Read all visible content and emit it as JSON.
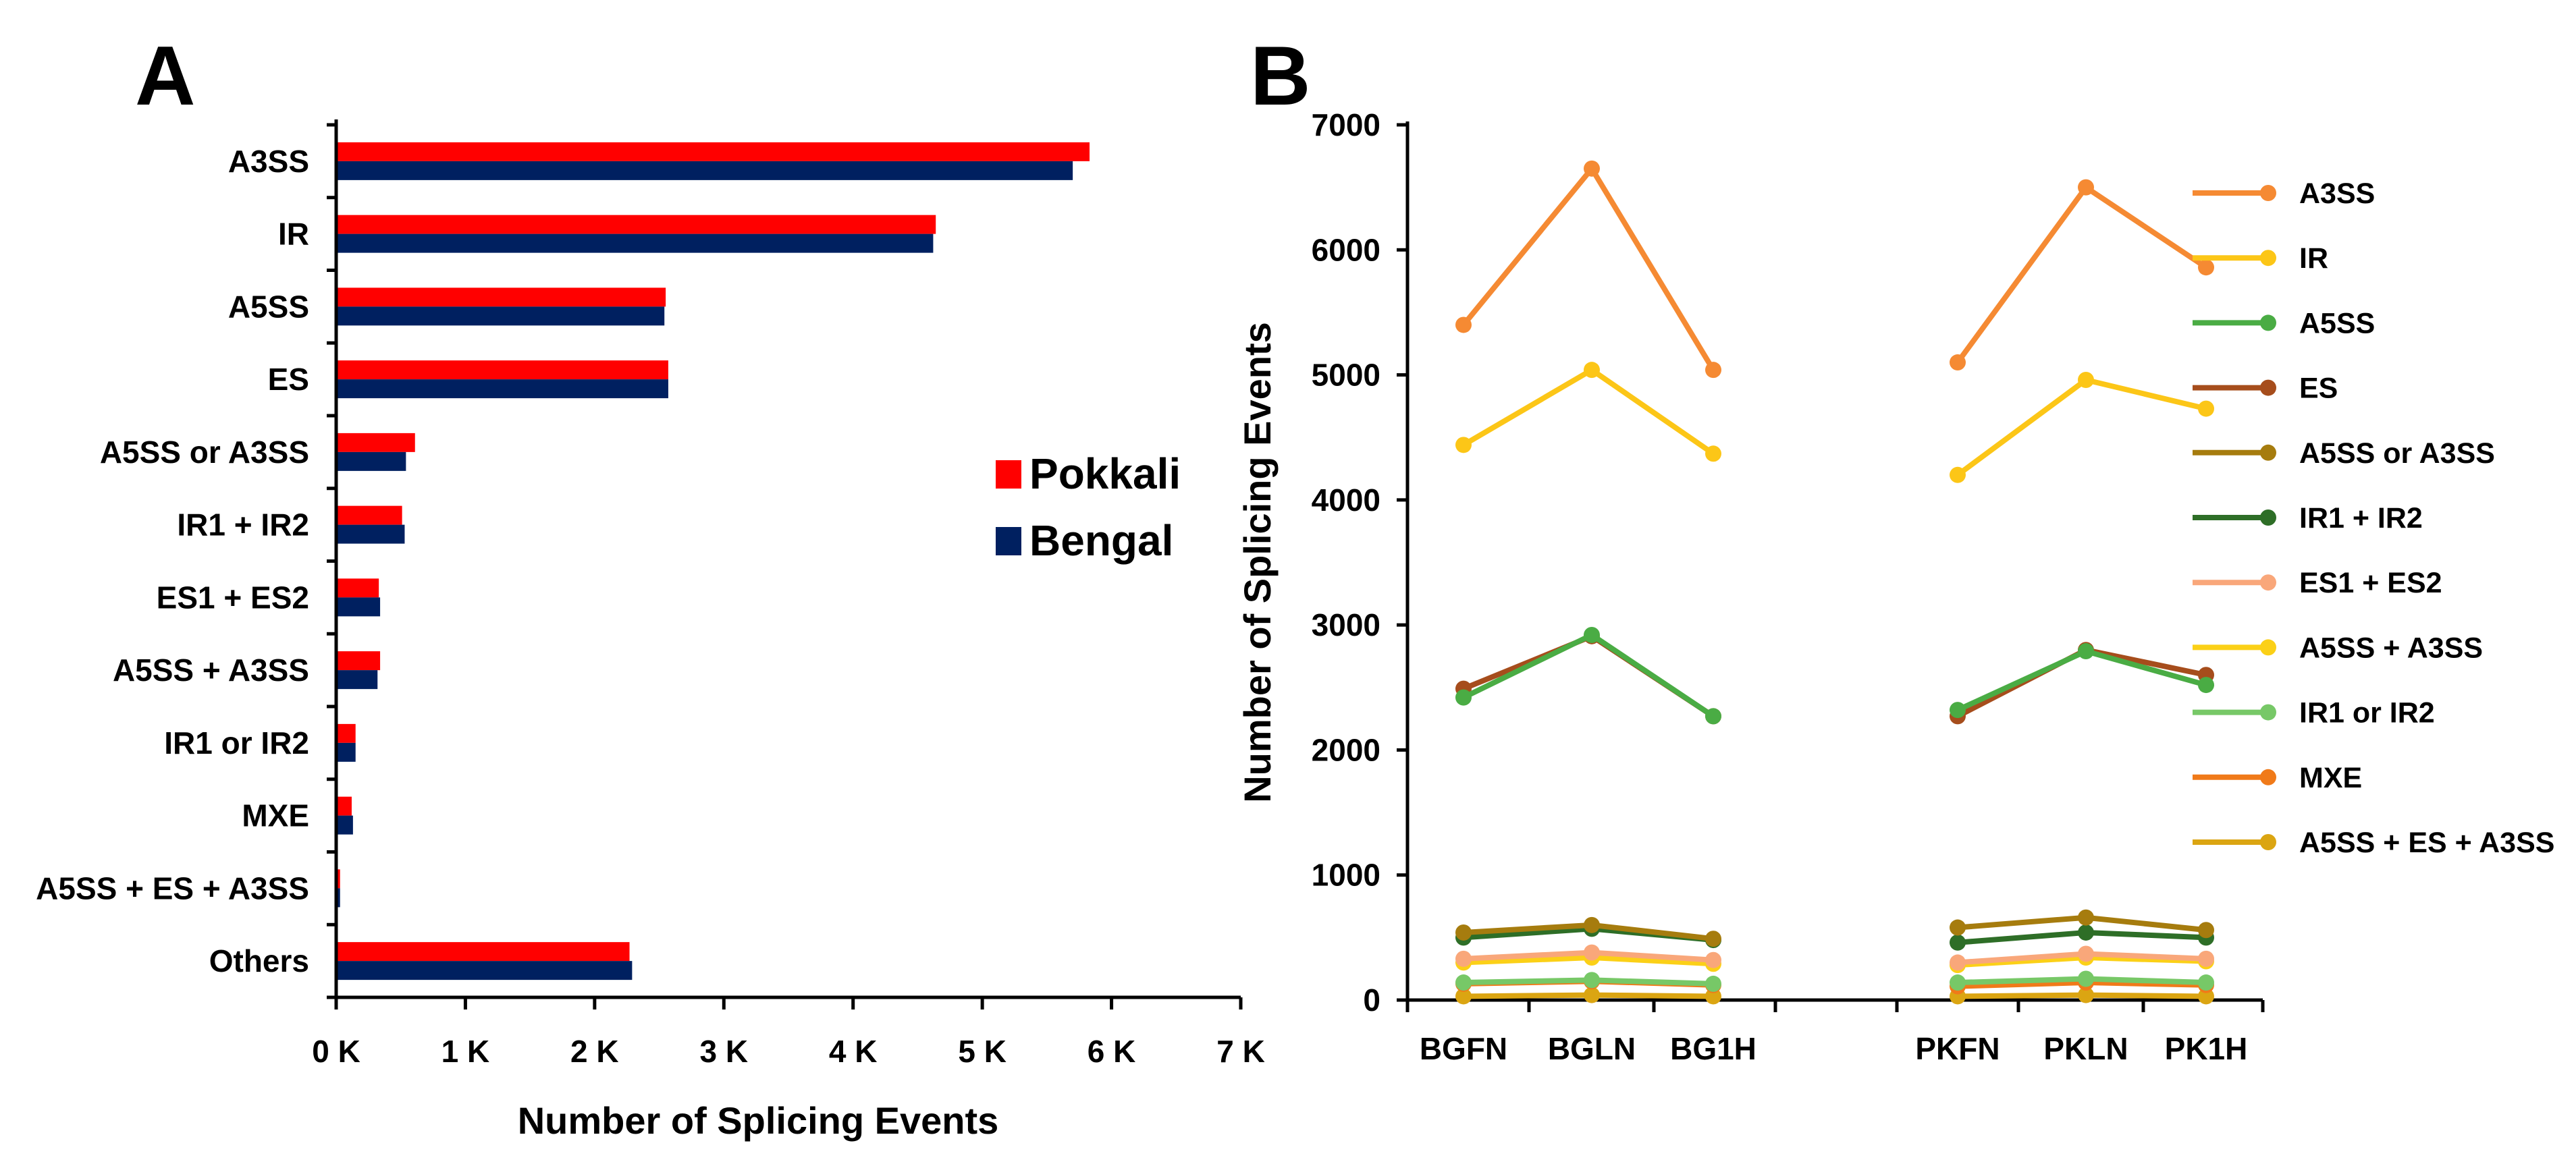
{
  "chart_data": [
    {
      "panel_label": "A",
      "type": "bar",
      "orientation": "horizontal",
      "categories": [
        "A3SS",
        "IR",
        "A5SS",
        "ES",
        "A5SS or A3SS",
        "IR1 + IR2",
        "ES1 + ES2",
        "A5SS + A3SS",
        "IR1 or IR2",
        "MXE",
        "A5SS + ES + A3SS",
        "Others"
      ],
      "series": [
        {
          "name": "Pokkali",
          "color": "#ff0000",
          "values": [
            5830,
            4640,
            2550,
            2570,
            610,
            510,
            330,
            340,
            150,
            120,
            30,
            2270
          ]
        },
        {
          "name": "Bengal",
          "color": "#002060",
          "values": [
            5700,
            4620,
            2540,
            2570,
            540,
            530,
            340,
            320,
            150,
            130,
            30,
            2290
          ]
        }
      ],
      "xlabel": "Number of Splicing Events",
      "xlim": [
        0,
        7000
      ],
      "xticks": [
        0,
        1000,
        2000,
        3000,
        4000,
        5000,
        6000,
        7000
      ],
      "xtick_labels": [
        "0 K",
        "1 K",
        "2 K",
        "3 K",
        "4 K",
        "5 K",
        "6 K",
        "7 K"
      ],
      "legend": "center-right",
      "grid": false
    },
    {
      "panel_label": "B",
      "type": "line",
      "groups": [
        [
          "BGFN",
          "BGLN",
          "BG1H"
        ],
        [
          "PKFN",
          "PKLN",
          "PK1H"
        ]
      ],
      "ylabel": "Number of Splicing Events",
      "ylim": [
        0,
        7000
      ],
      "yticks": [
        0,
        1000,
        2000,
        3000,
        4000,
        5000,
        6000,
        7000
      ],
      "ytick_labels": [
        "0",
        "1000",
        "2000",
        "3000",
        "4000",
        "5000",
        "6000",
        "7000"
      ],
      "legend": "right",
      "grid": false,
      "series": [
        {
          "name": "A3SS",
          "color": "#f58a33",
          "values": [
            5400,
            6650,
            5040,
            5100,
            6500,
            5860
          ]
        },
        {
          "name": "IR",
          "color": "#fcc617",
          "values": [
            4440,
            5040,
            4370,
            4200,
            4960,
            4730
          ]
        },
        {
          "name": "A5SS",
          "color": "#4aac44",
          "values": [
            2420,
            2920,
            2270,
            2320,
            2790,
            2520
          ]
        },
        {
          "name": "ES",
          "color": "#a64d1c",
          "values": [
            2490,
            2910,
            2270,
            2270,
            2800,
            2600
          ]
        },
        {
          "name": "A5SS or A3SS",
          "color": "#a67c0e",
          "values": [
            540,
            600,
            490,
            580,
            660,
            560
          ]
        },
        {
          "name": "IR1 + IR2",
          "color": "#2e6e27",
          "values": [
            500,
            570,
            480,
            460,
            540,
            500
          ]
        },
        {
          "name": "ES1 + ES2",
          "color": "#f9a77a",
          "values": [
            330,
            380,
            320,
            300,
            370,
            330
          ]
        },
        {
          "name": "A5SS + A3SS",
          "color": "#fbd017",
          "values": [
            300,
            340,
            290,
            280,
            340,
            310
          ]
        },
        {
          "name": "IR1 or IR2",
          "color": "#77c867",
          "values": [
            140,
            160,
            130,
            140,
            170,
            140
          ]
        },
        {
          "name": "MXE",
          "color": "#f07a19",
          "values": [
            130,
            150,
            120,
            110,
            140,
            120
          ]
        },
        {
          "name": "A5SS + ES + A3SS",
          "color": "#dba512",
          "values": [
            30,
            40,
            30,
            30,
            40,
            30
          ]
        }
      ]
    }
  ]
}
